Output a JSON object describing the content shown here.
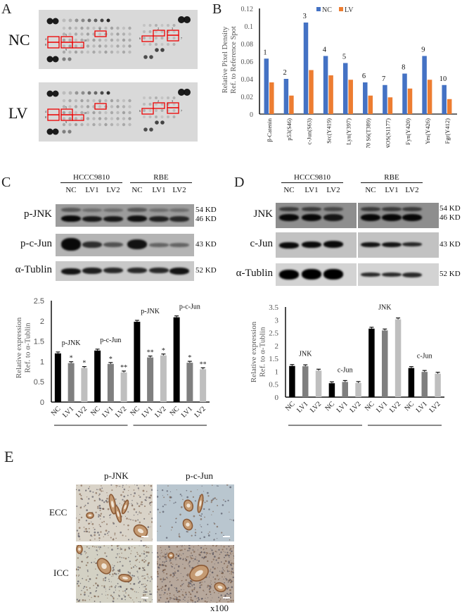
{
  "panels": {
    "A": {
      "letter": "A",
      "rows": [
        {
          "label": "NC"
        },
        {
          "label": "LV"
        }
      ],
      "box_numbers": [
        "1",
        "2",
        "3",
        "4",
        "5",
        "6",
        "7",
        "8",
        "9",
        "10"
      ]
    },
    "B": {
      "letter": "B"
    },
    "C": {
      "letter": "C",
      "groups": [
        "HCCC9810",
        "RBE"
      ],
      "lanes": [
        "NC",
        "LV1",
        "LV2",
        "NC",
        "LV1",
        "LV2"
      ],
      "blots": [
        {
          "label": "p-JNK",
          "sizes": [
            "54 KD",
            "46 KD"
          ]
        },
        {
          "label": "p-c-Jun",
          "sizes": [
            "43 KD"
          ]
        },
        {
          "label": "α-Tublin",
          "sizes": [
            "52 KD"
          ]
        }
      ]
    },
    "D": {
      "letter": "D",
      "groups": [
        "HCCC9810",
        "RBE"
      ],
      "lanes": [
        "NC",
        "LV1",
        "LV2",
        "NC",
        "LV1",
        "LV2"
      ],
      "blots": [
        {
          "label": "JNK",
          "sizes": [
            "54 KD",
            "46 KD"
          ]
        },
        {
          "label": "c-Jun",
          "sizes": [
            "43 KD"
          ]
        },
        {
          "label": "α-Tublin",
          "sizes": [
            "52 KD"
          ]
        }
      ]
    },
    "E": {
      "letter": "E",
      "columns": [
        "p-JNK",
        "p-c-Jun"
      ],
      "rows": [
        "ECC",
        "ICC"
      ],
      "magnification": "x100"
    }
  },
  "chart_data": [
    {
      "id": "B",
      "type": "bar",
      "title": "",
      "xlabel": "",
      "ylabel": "Relative Pixel Density\nRef. to Reference Spot",
      "ylim": [
        0,
        0.12
      ],
      "yticks": [
        "0",
        "0.02",
        "0.04",
        "0.06",
        "0.08",
        "0.1",
        "0.12"
      ],
      "legend_position": "top",
      "categories": [
        "β-Catenin",
        "p53(S46)",
        "c-Jun(S63)",
        "Src(Y419)",
        "Lyn(Y397)",
        "p70 S6(T389)",
        "eNOS(S1177)",
        "Fyn(Y420)",
        "Yes(Y426)",
        "Fgr(Y412)"
      ],
      "annotations": [
        "1",
        "2",
        "3",
        "4",
        "5",
        "6",
        "7",
        "8",
        "9",
        "10"
      ],
      "series": [
        {
          "name": "NC",
          "color": "#4472c4",
          "values": [
            0.063,
            0.04,
            0.104,
            0.066,
            0.058,
            0.036,
            0.033,
            0.046,
            0.066,
            0.033
          ]
        },
        {
          "name": "LV",
          "color": "#ed7d31",
          "values": [
            0.036,
            0.021,
            0.05,
            0.044,
            0.039,
            0.021,
            0.019,
            0.029,
            0.039,
            0.017
          ]
        }
      ]
    },
    {
      "id": "C",
      "type": "bar",
      "ylabel": "Relative expression\nRef. to α-Tublin",
      "ylim": [
        0,
        2.5
      ],
      "yticks": [
        "0",
        "0.5",
        "1",
        "1.5",
        "2",
        "2.5"
      ],
      "categories": [
        "NC",
        "LV1",
        "LV2",
        "NC",
        "LV1",
        "LV2",
        "NC",
        "LV1",
        "LV2",
        "NC",
        "LV1",
        "LV2"
      ],
      "cell_groups": [
        "HCCC9810",
        "RBE"
      ],
      "bar_colors": [
        "#000000",
        "#7f7f7f",
        "#bfbfbf"
      ],
      "values": [
        1.2,
        0.96,
        0.84,
        1.27,
        0.94,
        0.73,
        1.98,
        1.1,
        1.15,
        2.09,
        0.97,
        0.81
      ],
      "significance": [
        "",
        "*",
        "*",
        "",
        "*",
        "**",
        "",
        "**",
        "*",
        "",
        "*",
        "**"
      ],
      "group_labels": [
        {
          "text": "p-JNK",
          "at": 1
        },
        {
          "text": "p-c-Jun",
          "at": 4
        },
        {
          "text": "p-JNK",
          "at": 7
        },
        {
          "text": "p-c-Jun",
          "at": 10
        }
      ]
    },
    {
      "id": "D",
      "type": "bar",
      "ylabel": "Relative expression\nRef. to α-Tublin",
      "ylim": [
        0,
        3.5
      ],
      "yticks": [
        "0",
        "0.5",
        "1",
        "1.5",
        "2",
        "2.5",
        "3",
        "3.5"
      ],
      "categories": [
        "NC",
        "LV1",
        "LV2",
        "NC",
        "LV1",
        "LV2",
        "NC",
        "LV1",
        "LV2",
        "NC",
        "LV1",
        "LV2"
      ],
      "cell_groups": [
        "HCCC9810",
        "RBE"
      ],
      "bar_colors": [
        "#000000",
        "#7f7f7f",
        "#bfbfbf"
      ],
      "values": [
        1.21,
        1.2,
        1.03,
        0.54,
        0.59,
        0.55,
        2.66,
        2.59,
        3.02,
        1.13,
        0.98,
        0.91
      ],
      "group_labels": [
        {
          "text": "JNK",
          "at": 1
        },
        {
          "text": "c-Jun",
          "at": 4
        },
        {
          "text": "JNK",
          "at": 7
        },
        {
          "text": "c-Jun",
          "at": 10
        }
      ]
    }
  ]
}
